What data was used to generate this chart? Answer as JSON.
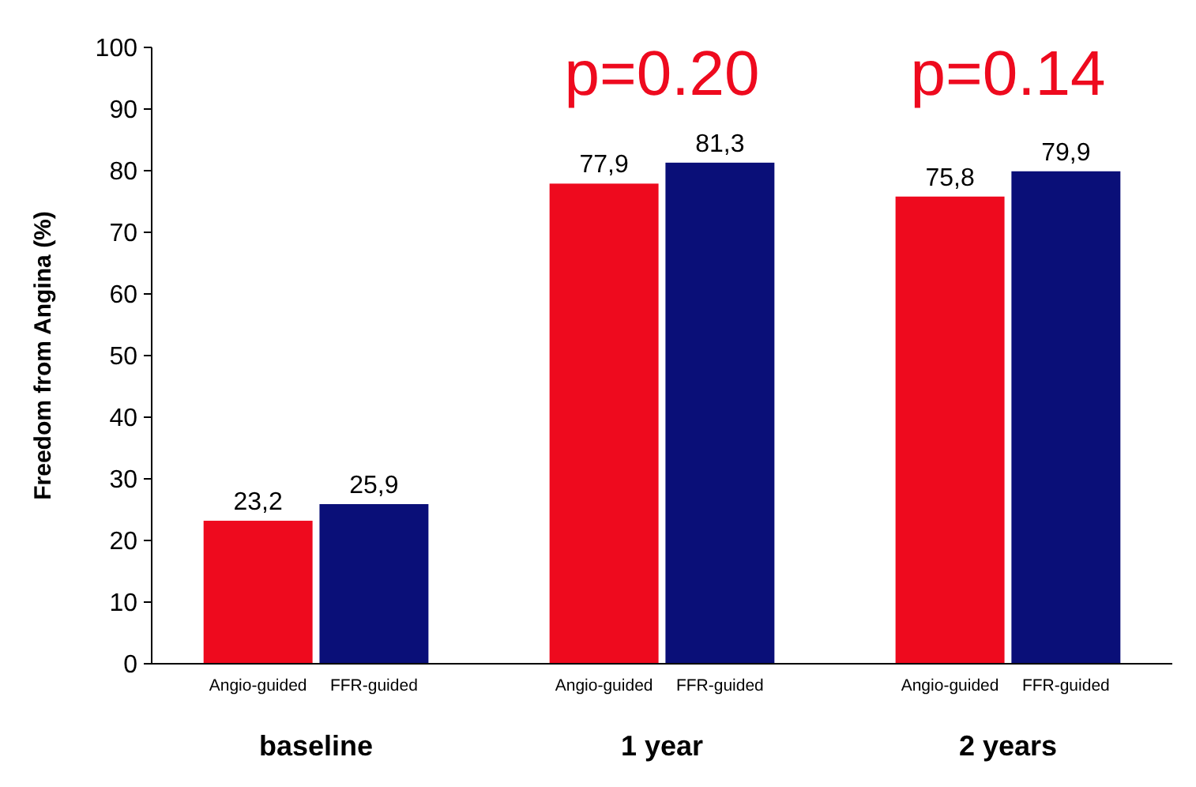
{
  "chart_data": {
    "type": "bar",
    "ylabel": "Freedom from Angina (%)",
    "categories": [
      "baseline",
      "1 year",
      "2 years"
    ],
    "series": [
      {
        "name": "Angio-guided",
        "color": "#ee0a1e",
        "values": [
          23.2,
          77.9,
          75.8
        ],
        "value_labels": [
          "23,2",
          "77,9",
          "75,8"
        ]
      },
      {
        "name": "FFR-guided",
        "color": "#0a0f78",
        "values": [
          25.9,
          81.3,
          79.9
        ],
        "value_labels": [
          "25,9",
          "81,3",
          "79,9"
        ]
      }
    ],
    "ylim": [
      0,
      100
    ],
    "yticks": [
      0,
      10,
      20,
      30,
      40,
      50,
      60,
      70,
      80,
      90,
      100
    ],
    "grid": false,
    "annotations": [
      "p=0.20",
      "p=0.14"
    ]
  }
}
